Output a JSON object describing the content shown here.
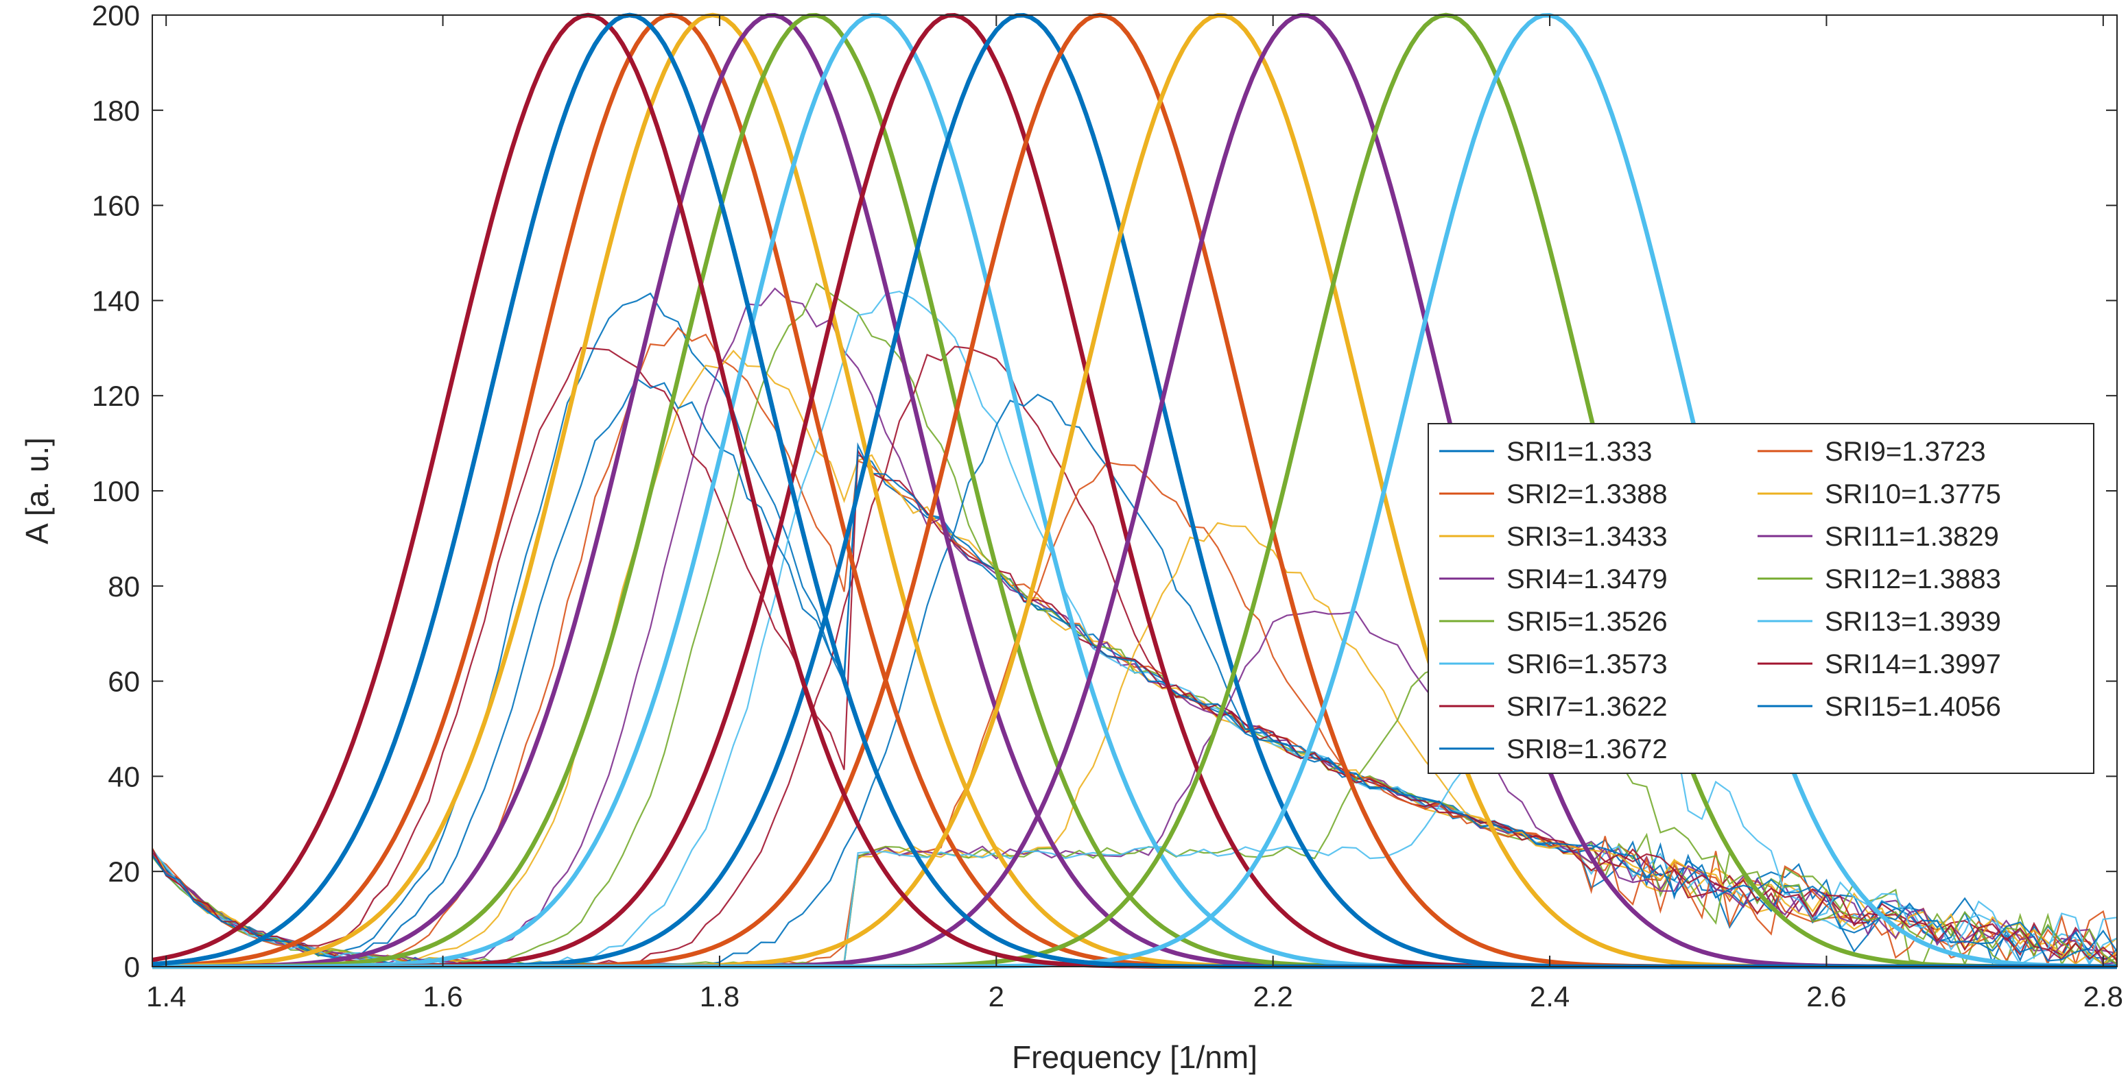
{
  "chart_data": {
    "type": "line",
    "xlabel": "Frequency [1/nm]",
    "ylabel": "A [a. u.]",
    "xlim": [
      1.39,
      2.81
    ],
    "ylim": [
      0,
      200
    ],
    "xticks": [
      1.4,
      1.6,
      1.8,
      2,
      2.2,
      2.4,
      2.6,
      2.8
    ],
    "xtick_labels": [
      "1.4",
      "1.6",
      "1.8",
      "2",
      "2.2",
      "2.4",
      "2.6",
      "2.8"
    ],
    "yticks": [
      0,
      20,
      40,
      60,
      80,
      100,
      120,
      140,
      160,
      180,
      200
    ],
    "ytick_labels": [
      "0",
      "20",
      "40",
      "60",
      "80",
      "100",
      "120",
      "140",
      "160",
      "180",
      "200"
    ],
    "legend_position": "right",
    "fitted_peak_amplitude": 200,
    "fitted_peak_width": 0.1,
    "series": [
      {
        "name": "SRI1=1.333",
        "color": "#0072BD",
        "fit_center": 1.735,
        "measured_peak": 140
      },
      {
        "name": "SRI2=1.3388",
        "color": "#D95319",
        "fit_center": 1.765,
        "measured_peak": 133
      },
      {
        "name": "SRI3=1.3433",
        "color": "#EDB120",
        "fit_center": 1.795,
        "measured_peak": 128
      },
      {
        "name": "SRI4=1.3479",
        "color": "#7E2F8E",
        "fit_center": 1.838,
        "measured_peak": 142
      },
      {
        "name": "SRI5=1.3526",
        "color": "#77AC30",
        "fit_center": 1.868,
        "measured_peak": 141
      },
      {
        "name": "SRI6=1.3573",
        "color": "#4DBEEE",
        "fit_center": 1.912,
        "measured_peak": 141
      },
      {
        "name": "SRI7=1.3622",
        "color": "#A2142F",
        "fit_center": 1.968,
        "measured_peak": 130
      },
      {
        "name": "SRI8=1.3672",
        "color": "#0072BD",
        "fit_center": 2.018,
        "measured_peak": 119
      },
      {
        "name": "SRI9=1.3723",
        "color": "#D95319",
        "fit_center": 2.075,
        "measured_peak": 105
      },
      {
        "name": "SRI10=1.3775",
        "color": "#EDB120",
        "fit_center": 2.162,
        "measured_peak": 92
      },
      {
        "name": "SRI11=1.3829",
        "color": "#7E2F8E",
        "fit_center": 2.222,
        "measured_peak": 76
      },
      {
        "name": "SRI12=1.3883",
        "color": "#77AC30",
        "fit_center": 2.325,
        "measured_peak": 64
      },
      {
        "name": "SRI13=1.3939",
        "color": "#4DBEEE",
        "fit_center": 2.398,
        "measured_peak": 58
      },
      {
        "name": "SRI14=1.3997",
        "color": "#A2142F",
        "fit_center": 1.705,
        "measured_peak": 130
      },
      {
        "name": "SRI15=1.4056",
        "color": "#0072BD",
        "fit_center": 1.735,
        "measured_peak": 122
      }
    ]
  }
}
